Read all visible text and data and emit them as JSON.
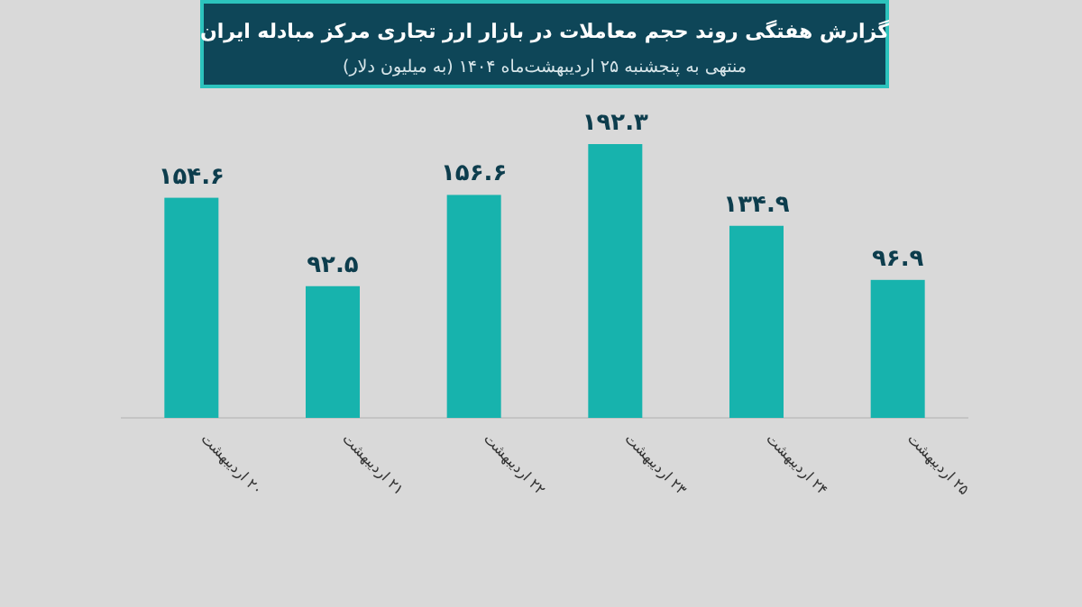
{
  "chart_data": {
    "type": "bar",
    "title": "گزارش هفتگی روند حجم معاملات در بازار ارز تجاری مرکز مبادله ایران",
    "subtitle": "منتهی به پنجشنبه ۲۵ اردیبهشت‌ماه ۱۴۰۴ (به میلیون دلار)",
    "categories": [
      "۲۰ اردیبهشت",
      "۲۱ اردیبهشت",
      "۲۲ اردیبهشت",
      "۲۳ اردیبهشت",
      "۲۴ اردیبهشت",
      "۲۵ اردیبهشت"
    ],
    "values": [
      154.6,
      92.5,
      156.6,
      192.3,
      134.9,
      96.9
    ],
    "value_labels": [
      "۱۵۴.۶",
      "۹۲.۵",
      "۱۵۶.۶",
      "۱۹۲.۳",
      "۱۳۴.۹",
      "۹۶.۹"
    ],
    "color": "#17b3ad",
    "grid": false,
    "legend": false
  }
}
